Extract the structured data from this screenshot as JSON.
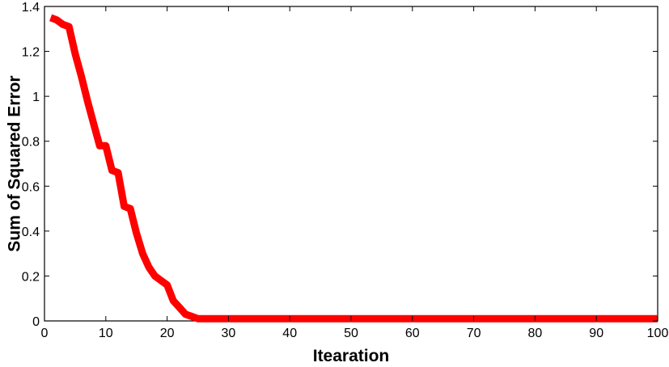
{
  "chart_data": {
    "type": "line",
    "title": "",
    "xlabel": "Itearation",
    "ylabel": "Sum of Squared Error",
    "xlim": [
      0,
      100
    ],
    "ylim": [
      0,
      1.4
    ],
    "xticks": [
      "0",
      "10",
      "20",
      "30",
      "40",
      "50",
      "60",
      "70",
      "80",
      "90",
      "100"
    ],
    "yticks": [
      "0",
      "0.2",
      "0.4",
      "0.6",
      "0.8",
      "1",
      "1.2",
      "1.4"
    ],
    "grid": false,
    "legend": "none",
    "series": [
      {
        "color": "#ff0000",
        "x": [
          1,
          2,
          3,
          4,
          5,
          6,
          7,
          8,
          9,
          10,
          11,
          12,
          13,
          14,
          15,
          16,
          17,
          18,
          19,
          20,
          21,
          22,
          23,
          24,
          25,
          30,
          40,
          50,
          60,
          70,
          80,
          90,
          100
        ],
        "y": [
          1.35,
          1.34,
          1.32,
          1.31,
          1.19,
          1.09,
          0.98,
          0.88,
          0.78,
          0.78,
          0.67,
          0.66,
          0.51,
          0.5,
          0.39,
          0.3,
          0.24,
          0.2,
          0.18,
          0.16,
          0.09,
          0.06,
          0.03,
          0.02,
          0.01,
          0.01,
          0.01,
          0.01,
          0.01,
          0.01,
          0.01,
          0.01,
          0.01
        ]
      }
    ]
  }
}
